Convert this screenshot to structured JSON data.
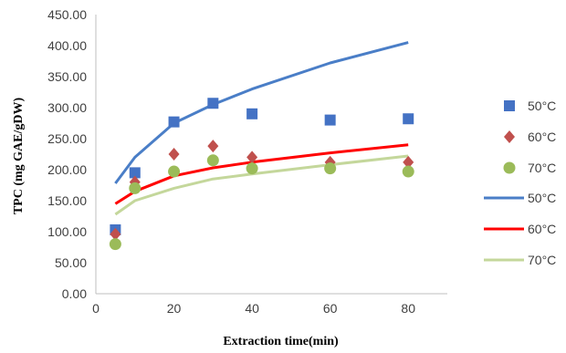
{
  "chart_data": {
    "type": "scatter",
    "title": "",
    "xlabel": "Extraction time(min)",
    "ylabel": "TPC (mg GAE/gDW)",
    "xlim": [
      0,
      90
    ],
    "ylim": [
      0,
      450
    ],
    "x_ticks": [
      "0",
      "20",
      "40",
      "60",
      "80"
    ],
    "y_ticks": [
      "0.00",
      "50.00",
      "100.00",
      "150.00",
      "200.00",
      "250.00",
      "300.00",
      "350.00",
      "400.00",
      "450.00"
    ],
    "grid": false,
    "legend_position": "right",
    "x": [
      5,
      10,
      20,
      30,
      40,
      60,
      80
    ],
    "markers": [
      {
        "name": "50°C",
        "marker": "square",
        "color": "#4472C4",
        "values": [
          103,
          195,
          277,
          307,
          290,
          280,
          282
        ]
      },
      {
        "name": "60°C",
        "marker": "diamond",
        "color": "#C0504D",
        "values": [
          96,
          180,
          225,
          238,
          220,
          212,
          212
        ]
      },
      {
        "name": "70°C",
        "marker": "circle",
        "color": "#9BBB59",
        "values": [
          80,
          170,
          197,
          215,
          202,
          202,
          197
        ]
      }
    ],
    "lines": [
      {
        "name": "50°C",
        "color": "#4A7EC7",
        "x": [
          5,
          10,
          20,
          30,
          40,
          60,
          80
        ],
        "values": [
          178,
          220,
          275,
          305,
          330,
          372,
          405
        ]
      },
      {
        "name": "60°C",
        "color": "#FF0000",
        "x": [
          5,
          10,
          20,
          30,
          40,
          60,
          80
        ],
        "values": [
          145,
          165,
          190,
          203,
          212,
          227,
          240
        ]
      },
      {
        "name": "70°C",
        "color": "#C4D79B",
        "x": [
          5,
          10,
          20,
          30,
          40,
          60,
          80
        ],
        "values": [
          128,
          150,
          170,
          185,
          193,
          208,
          222
        ]
      }
    ]
  }
}
